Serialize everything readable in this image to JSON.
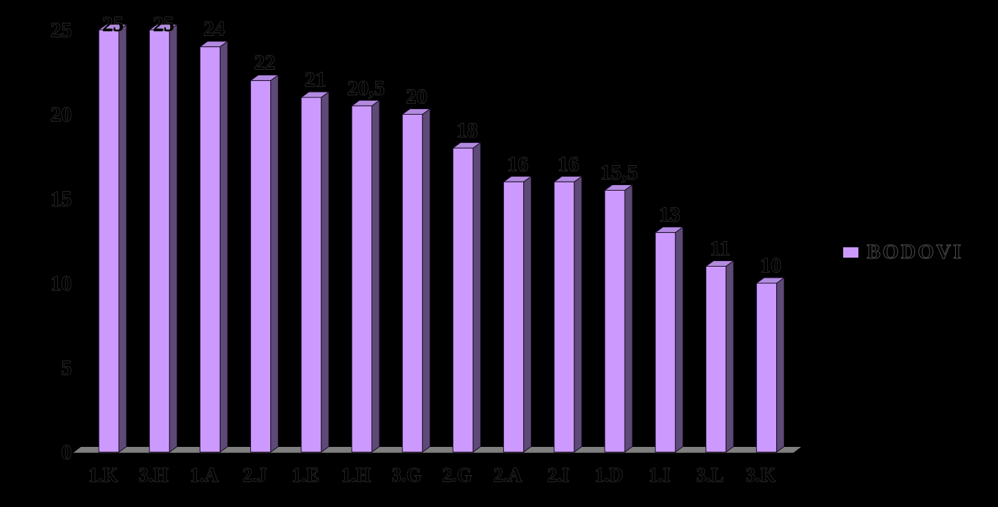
{
  "chart_data": {
    "type": "bar",
    "style": "3d-column",
    "title": "",
    "categories": [
      "1.K",
      "3.H",
      "1.A",
      "2.J",
      "1.E",
      "1.H",
      "3.G",
      "2.G",
      "2.A",
      "2.I",
      "1.D",
      "1.I",
      "3.L",
      "3.K"
    ],
    "series": [
      {
        "name": "BODOVI",
        "values": [
          25,
          25,
          24,
          22,
          21,
          20.5,
          20,
          18,
          16,
          16,
          15.5,
          13,
          11,
          10
        ]
      }
    ],
    "value_labels": [
      "25",
      "25",
      "24",
      "22",
      "21",
      "20,5",
      "20",
      "18",
      "16",
      "16",
      "15,5",
      "13",
      "11",
      "10"
    ],
    "yticks": [
      0,
      5,
      10,
      15,
      20,
      25
    ],
    "ylim": [
      0,
      25
    ],
    "grid": false,
    "legend": {
      "position": "right",
      "items": [
        {
          "label": "BODOVI",
          "color": "#CC99FF"
        }
      ]
    },
    "colors": {
      "bar_face": "#CC99FF",
      "bar_side": "#5E4A76",
      "bar_top": "#B28BE0",
      "bar_outline": "#14091F",
      "floor": "#7F7F7F",
      "background": "#000000",
      "text": "#000000",
      "text_outline": "#4F4F4F"
    }
  }
}
